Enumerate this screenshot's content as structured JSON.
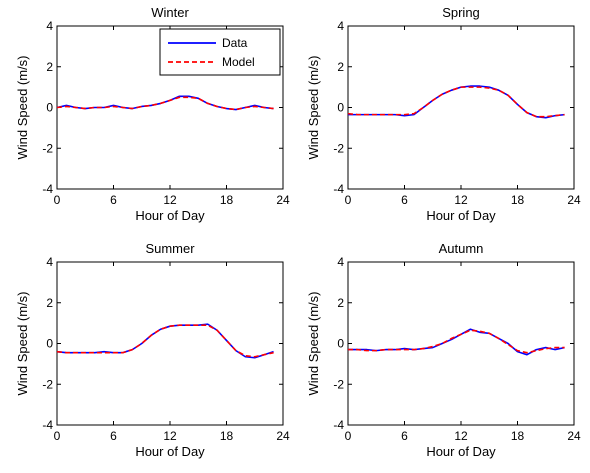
{
  "chart_data": [
    {
      "type": "line",
      "title": "Winter",
      "xlabel": "Hour of Day",
      "ylabel": "Wind Speed (m/s)",
      "xlim": [
        0,
        24
      ],
      "ylim": [
        -4,
        4
      ],
      "xticks": [
        "0",
        "6",
        "12",
        "18",
        "24"
      ],
      "yticks": [
        "-4",
        "-2",
        "0",
        "2",
        "4"
      ],
      "grid": false,
      "legend": {
        "position": "top-right",
        "entries": [
          "Data",
          "Model"
        ]
      },
      "x": [
        0,
        1,
        2,
        3,
        4,
        5,
        6,
        7,
        8,
        9,
        10,
        11,
        12,
        13,
        14,
        15,
        16,
        17,
        18,
        19,
        20,
        21,
        22,
        23
      ],
      "series": [
        {
          "name": "Data",
          "color": "#0000ff",
          "style": "solid",
          "values": [
            0.0,
            0.1,
            0.0,
            -0.05,
            0.0,
            0.0,
            0.1,
            0.0,
            -0.05,
            0.05,
            0.1,
            0.2,
            0.35,
            0.55,
            0.55,
            0.45,
            0.2,
            0.05,
            -0.05,
            -0.1,
            0.0,
            0.1,
            0.0,
            -0.05
          ]
        },
        {
          "name": "Model",
          "color": "#ff0000",
          "style": "dashed",
          "values": [
            0.0,
            0.05,
            0.0,
            -0.05,
            0.0,
            0.0,
            0.05,
            0.0,
            -0.05,
            0.05,
            0.1,
            0.2,
            0.35,
            0.5,
            0.5,
            0.45,
            0.2,
            0.05,
            -0.05,
            -0.1,
            0.0,
            0.05,
            0.0,
            -0.05
          ]
        }
      ]
    },
    {
      "type": "line",
      "title": "Spring",
      "xlabel": "Hour of Day",
      "ylabel": "Wind Speed (m/s)",
      "xlim": [
        0,
        24
      ],
      "ylim": [
        -4,
        4
      ],
      "xticks": [
        "0",
        "6",
        "12",
        "18",
        "24"
      ],
      "yticks": [
        "-4",
        "-2",
        "0",
        "2",
        "4"
      ],
      "grid": false,
      "x": [
        0,
        1,
        2,
        3,
        4,
        5,
        6,
        7,
        8,
        9,
        10,
        11,
        12,
        13,
        14,
        15,
        16,
        17,
        18,
        19,
        20,
        21,
        22,
        23
      ],
      "series": [
        {
          "name": "Data",
          "color": "#0000ff",
          "style": "solid",
          "values": [
            -0.35,
            -0.35,
            -0.35,
            -0.35,
            -0.35,
            -0.35,
            -0.4,
            -0.35,
            0.0,
            0.35,
            0.65,
            0.85,
            1.0,
            1.05,
            1.05,
            1.0,
            0.85,
            0.6,
            0.15,
            -0.25,
            -0.45,
            -0.5,
            -0.4,
            -0.35
          ]
        },
        {
          "name": "Model",
          "color": "#ff0000",
          "style": "dashed",
          "values": [
            -0.3,
            -0.35,
            -0.35,
            -0.35,
            -0.35,
            -0.35,
            -0.35,
            -0.3,
            0.0,
            0.35,
            0.65,
            0.85,
            1.0,
            1.0,
            1.0,
            0.95,
            0.85,
            0.6,
            0.15,
            -0.25,
            -0.45,
            -0.45,
            -0.4,
            -0.35
          ]
        }
      ]
    },
    {
      "type": "line",
      "title": "Summer",
      "xlabel": "Hour of Day",
      "ylabel": "Wind Speed (m/s)",
      "xlim": [
        0,
        24
      ],
      "ylim": [
        -4,
        4
      ],
      "xticks": [
        "0",
        "6",
        "12",
        "18",
        "24"
      ],
      "yticks": [
        "-4",
        "-2",
        "0",
        "2",
        "4"
      ],
      "grid": false,
      "x": [
        0,
        1,
        2,
        3,
        4,
        5,
        6,
        7,
        8,
        9,
        10,
        11,
        12,
        13,
        14,
        15,
        16,
        17,
        18,
        19,
        20,
        21,
        22,
        23
      ],
      "series": [
        {
          "name": "Data",
          "color": "#0000ff",
          "style": "solid",
          "values": [
            -0.4,
            -0.45,
            -0.45,
            -0.45,
            -0.45,
            -0.4,
            -0.45,
            -0.45,
            -0.3,
            0.0,
            0.4,
            0.7,
            0.85,
            0.9,
            0.9,
            0.9,
            0.95,
            0.65,
            0.15,
            -0.35,
            -0.65,
            -0.7,
            -0.55,
            -0.4
          ]
        },
        {
          "name": "Model",
          "color": "#ff0000",
          "style": "dashed",
          "values": [
            -0.4,
            -0.45,
            -0.45,
            -0.45,
            -0.45,
            -0.45,
            -0.45,
            -0.45,
            -0.3,
            0.0,
            0.4,
            0.7,
            0.85,
            0.9,
            0.9,
            0.9,
            0.9,
            0.65,
            0.15,
            -0.35,
            -0.6,
            -0.65,
            -0.55,
            -0.45
          ]
        }
      ]
    },
    {
      "type": "line",
      "title": "Autumn",
      "xlabel": "Hour of Day",
      "ylabel": "Wind Speed (m/s)",
      "xlim": [
        0,
        24
      ],
      "ylim": [
        -4,
        4
      ],
      "xticks": [
        "0",
        "6",
        "12",
        "18",
        "24"
      ],
      "yticks": [
        "-4",
        "-2",
        "0",
        "2",
        "4"
      ],
      "grid": false,
      "x": [
        0,
        1,
        2,
        3,
        4,
        5,
        6,
        7,
        8,
        9,
        10,
        11,
        12,
        13,
        14,
        15,
        16,
        17,
        18,
        19,
        20,
        21,
        22,
        23
      ],
      "series": [
        {
          "name": "Data",
          "color": "#0000ff",
          "style": "solid",
          "values": [
            -0.3,
            -0.3,
            -0.3,
            -0.35,
            -0.3,
            -0.3,
            -0.25,
            -0.3,
            -0.25,
            -0.2,
            0.0,
            0.2,
            0.45,
            0.7,
            0.55,
            0.5,
            0.25,
            0.0,
            -0.4,
            -0.55,
            -0.3,
            -0.2,
            -0.3,
            -0.2
          ]
        },
        {
          "name": "Model",
          "color": "#ff0000",
          "style": "dashed",
          "values": [
            -0.3,
            -0.3,
            -0.35,
            -0.35,
            -0.3,
            -0.3,
            -0.3,
            -0.3,
            -0.25,
            -0.15,
            0.0,
            0.25,
            0.45,
            0.65,
            0.6,
            0.5,
            0.25,
            -0.05,
            -0.35,
            -0.45,
            -0.35,
            -0.25,
            -0.2,
            -0.2
          ]
        }
      ]
    }
  ]
}
